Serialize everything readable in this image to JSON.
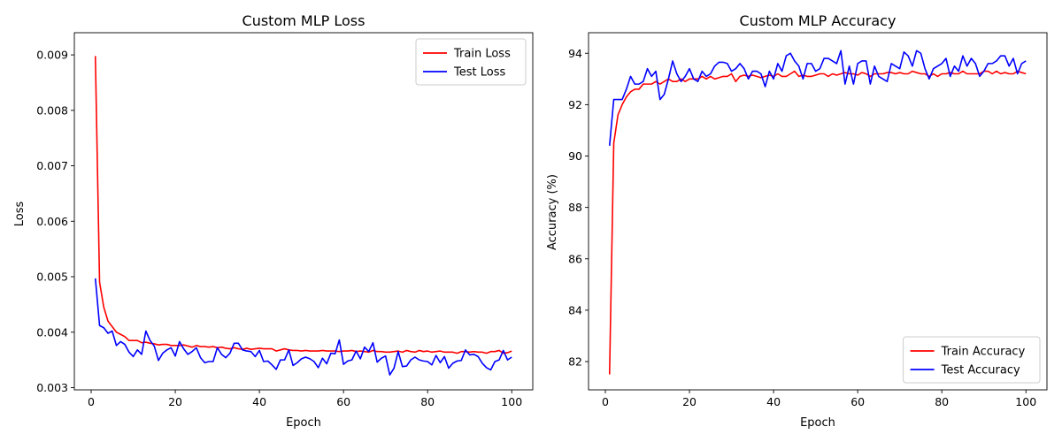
{
  "figure": {
    "background": "#ffffff"
  },
  "chart_data": [
    {
      "type": "line",
      "title": "Custom MLP Loss",
      "xlabel": "Epoch",
      "ylabel": "Loss",
      "xlim": [
        -4,
        105
      ],
      "ylim": [
        0.00296,
        0.0094
      ],
      "xticks": [
        0,
        20,
        40,
        60,
        80,
        100
      ],
      "yticks": [
        0.003,
        0.004,
        0.005,
        0.006,
        0.007,
        0.008,
        0.009
      ],
      "ytick_labels": [
        "0.003",
        "0.004",
        "0.005",
        "0.006",
        "0.007",
        "0.008",
        "0.009"
      ],
      "grid": false,
      "legend_position": "top-right",
      "x": [
        1,
        2,
        3,
        4,
        5,
        6,
        7,
        8,
        9,
        10,
        11,
        12,
        13,
        14,
        15,
        16,
        17,
        18,
        19,
        20,
        21,
        22,
        23,
        24,
        25,
        26,
        27,
        28,
        29,
        30,
        31,
        32,
        33,
        34,
        35,
        36,
        37,
        38,
        39,
        40,
        41,
        42,
        43,
        44,
        45,
        46,
        47,
        48,
        49,
        50,
        51,
        52,
        53,
        54,
        55,
        56,
        57,
        58,
        59,
        60,
        61,
        62,
        63,
        64,
        65,
        66,
        67,
        68,
        69,
        70,
        71,
        72,
        73,
        74,
        75,
        76,
        77,
        78,
        79,
        80,
        81,
        82,
        83,
        84,
        85,
        86,
        87,
        88,
        89,
        90,
        91,
        92,
        93,
        94,
        95,
        96,
        97,
        98,
        99,
        100
      ],
      "series": [
        {
          "name": "Train Loss",
          "color": "#ff0000",
          "values": [
            0.00898,
            0.0049,
            0.00445,
            0.0042,
            0.0041,
            0.004,
            0.00396,
            0.00392,
            0.00385,
            0.00385,
            0.00385,
            0.00381,
            0.00382,
            0.0038,
            0.00379,
            0.00377,
            0.00378,
            0.00378,
            0.00376,
            0.00376,
            0.00376,
            0.00377,
            0.00375,
            0.00373,
            0.00376,
            0.00374,
            0.00374,
            0.00373,
            0.00374,
            0.00372,
            0.00373,
            0.00371,
            0.0037,
            0.00372,
            0.0037,
            0.00369,
            0.00371,
            0.00369,
            0.0037,
            0.00371,
            0.0037,
            0.0037,
            0.0037,
            0.00366,
            0.00368,
            0.0037,
            0.00368,
            0.00367,
            0.00367,
            0.00366,
            0.00367,
            0.00366,
            0.00366,
            0.00366,
            0.00367,
            0.00366,
            0.00366,
            0.00366,
            0.00365,
            0.00366,
            0.00366,
            0.00367,
            0.00365,
            0.00366,
            0.00365,
            0.00364,
            0.00367,
            0.00365,
            0.00365,
            0.00364,
            0.00364,
            0.00365,
            0.00366,
            0.00364,
            0.00367,
            0.00365,
            0.00364,
            0.00367,
            0.00365,
            0.00366,
            0.00364,
            0.00365,
            0.00366,
            0.00364,
            0.00364,
            0.00364,
            0.00362,
            0.00365,
            0.00365,
            0.00364,
            0.00365,
            0.00364,
            0.00364,
            0.00362,
            0.00365,
            0.00365,
            0.00367,
            0.00362,
            0.00363,
            0.00366
          ]
        },
        {
          "name": "Test Loss",
          "color": "#0000ff",
          "values": [
            0.00497,
            0.00412,
            0.00408,
            0.00398,
            0.00402,
            0.00376,
            0.00383,
            0.00378,
            0.00364,
            0.00356,
            0.00368,
            0.0036,
            0.00402,
            0.00385,
            0.00375,
            0.00349,
            0.00362,
            0.00368,
            0.00372,
            0.00357,
            0.00383,
            0.0037,
            0.0036,
            0.00365,
            0.00372,
            0.00354,
            0.00345,
            0.00347,
            0.00347,
            0.00372,
            0.0036,
            0.00354,
            0.00362,
            0.0038,
            0.0038,
            0.00368,
            0.00366,
            0.00365,
            0.00356,
            0.00367,
            0.00347,
            0.00348,
            0.00341,
            0.00333,
            0.0035,
            0.0035,
            0.00368,
            0.0034,
            0.00345,
            0.00352,
            0.00355,
            0.00352,
            0.00347,
            0.00336,
            0.00353,
            0.00343,
            0.00362,
            0.00361,
            0.00386,
            0.00342,
            0.00348,
            0.0035,
            0.00366,
            0.00352,
            0.00373,
            0.00365,
            0.00381,
            0.00346,
            0.00353,
            0.00357,
            0.00323,
            0.00335,
            0.00365,
            0.00338,
            0.00339,
            0.0035,
            0.00355,
            0.0035,
            0.00348,
            0.00347,
            0.00341,
            0.00358,
            0.00345,
            0.00356,
            0.00335,
            0.00344,
            0.00348,
            0.00349,
            0.00368,
            0.00359,
            0.0036,
            0.00356,
            0.00344,
            0.00336,
            0.00332,
            0.00347,
            0.0035,
            0.00367,
            0.0035,
            0.00355
          ]
        }
      ]
    },
    {
      "type": "line",
      "title": "Custom MLP Accuracy",
      "xlabel": "Epoch",
      "ylabel": "Accuracy (%)",
      "xlim": [
        -4,
        105
      ],
      "ylim": [
        80.9,
        94.8
      ],
      "xticks": [
        0,
        20,
        40,
        60,
        80,
        100
      ],
      "yticks": [
        82,
        84,
        86,
        88,
        90,
        92,
        94
      ],
      "ytick_labels": [
        "82",
        "84",
        "86",
        "88",
        "90",
        "92",
        "94"
      ],
      "grid": false,
      "legend_position": "bottom-right",
      "x": [
        1,
        2,
        3,
        4,
        5,
        6,
        7,
        8,
        9,
        10,
        11,
        12,
        13,
        14,
        15,
        16,
        17,
        18,
        19,
        20,
        21,
        22,
        23,
        24,
        25,
        26,
        27,
        28,
        29,
        30,
        31,
        32,
        33,
        34,
        35,
        36,
        37,
        38,
        39,
        40,
        41,
        42,
        43,
        44,
        45,
        46,
        47,
        48,
        49,
        50,
        51,
        52,
        53,
        54,
        55,
        56,
        57,
        58,
        59,
        60,
        61,
        62,
        63,
        64,
        65,
        66,
        67,
        68,
        69,
        70,
        71,
        72,
        73,
        74,
        75,
        76,
        77,
        78,
        79,
        80,
        81,
        82,
        83,
        84,
        85,
        86,
        87,
        88,
        89,
        90,
        91,
        92,
        93,
        94,
        95,
        96,
        97,
        98,
        99,
        100
      ],
      "series": [
        {
          "name": "Train Accuracy",
          "color": "#ff0000",
          "values": [
            81.5,
            90.5,
            91.6,
            92.0,
            92.3,
            92.5,
            92.6,
            92.6,
            92.8,
            92.8,
            92.8,
            92.9,
            92.8,
            92.9,
            93.0,
            92.9,
            92.9,
            93.0,
            92.9,
            93.0,
            93.0,
            93.0,
            93.1,
            93.0,
            93.1,
            93.0,
            93.05,
            93.1,
            93.1,
            93.2,
            92.9,
            93.1,
            93.15,
            93.1,
            93.15,
            93.1,
            93.05,
            93.1,
            93.15,
            93.1,
            93.2,
            93.1,
            93.1,
            93.2,
            93.3,
            93.1,
            93.15,
            93.1,
            93.1,
            93.15,
            93.2,
            93.2,
            93.1,
            93.2,
            93.15,
            93.2,
            93.25,
            93.2,
            93.2,
            93.15,
            93.25,
            93.2,
            93.1,
            93.2,
            93.2,
            93.2,
            93.25,
            93.25,
            93.2,
            93.25,
            93.2,
            93.2,
            93.3,
            93.25,
            93.2,
            93.2,
            93.1,
            93.2,
            93.1,
            93.2,
            93.2,
            93.25,
            93.2,
            93.2,
            93.3,
            93.2,
            93.2,
            93.2,
            93.2,
            93.3,
            93.3,
            93.2,
            93.3,
            93.2,
            93.25,
            93.2,
            93.2,
            93.3,
            93.25,
            93.2
          ]
        },
        {
          "name": "Test Accuracy",
          "color": "#0000ff",
          "values": [
            90.4,
            92.2,
            92.2,
            92.2,
            92.6,
            93.1,
            92.8,
            92.8,
            92.9,
            93.4,
            93.1,
            93.3,
            92.2,
            92.4,
            93.0,
            93.7,
            93.2,
            92.9,
            93.1,
            93.4,
            93.0,
            92.9,
            93.3,
            93.1,
            93.2,
            93.5,
            93.65,
            93.65,
            93.6,
            93.3,
            93.4,
            93.6,
            93.4,
            93.0,
            93.3,
            93.3,
            93.2,
            92.7,
            93.3,
            93.0,
            93.6,
            93.3,
            93.9,
            94.0,
            93.7,
            93.5,
            93.0,
            93.6,
            93.6,
            93.3,
            93.4,
            93.8,
            93.8,
            93.7,
            93.6,
            94.1,
            92.8,
            93.5,
            92.8,
            93.6,
            93.7,
            93.7,
            92.8,
            93.5,
            93.1,
            93.0,
            92.9,
            93.6,
            93.5,
            93.4,
            94.05,
            93.9,
            93.5,
            94.1,
            94.0,
            93.4,
            93.0,
            93.4,
            93.5,
            93.6,
            93.8,
            93.1,
            93.5,
            93.3,
            93.9,
            93.5,
            93.8,
            93.6,
            93.1,
            93.3,
            93.6,
            93.6,
            93.7,
            93.9,
            93.9,
            93.5,
            93.8,
            93.2,
            93.6,
            93.7
          ]
        }
      ]
    }
  ]
}
